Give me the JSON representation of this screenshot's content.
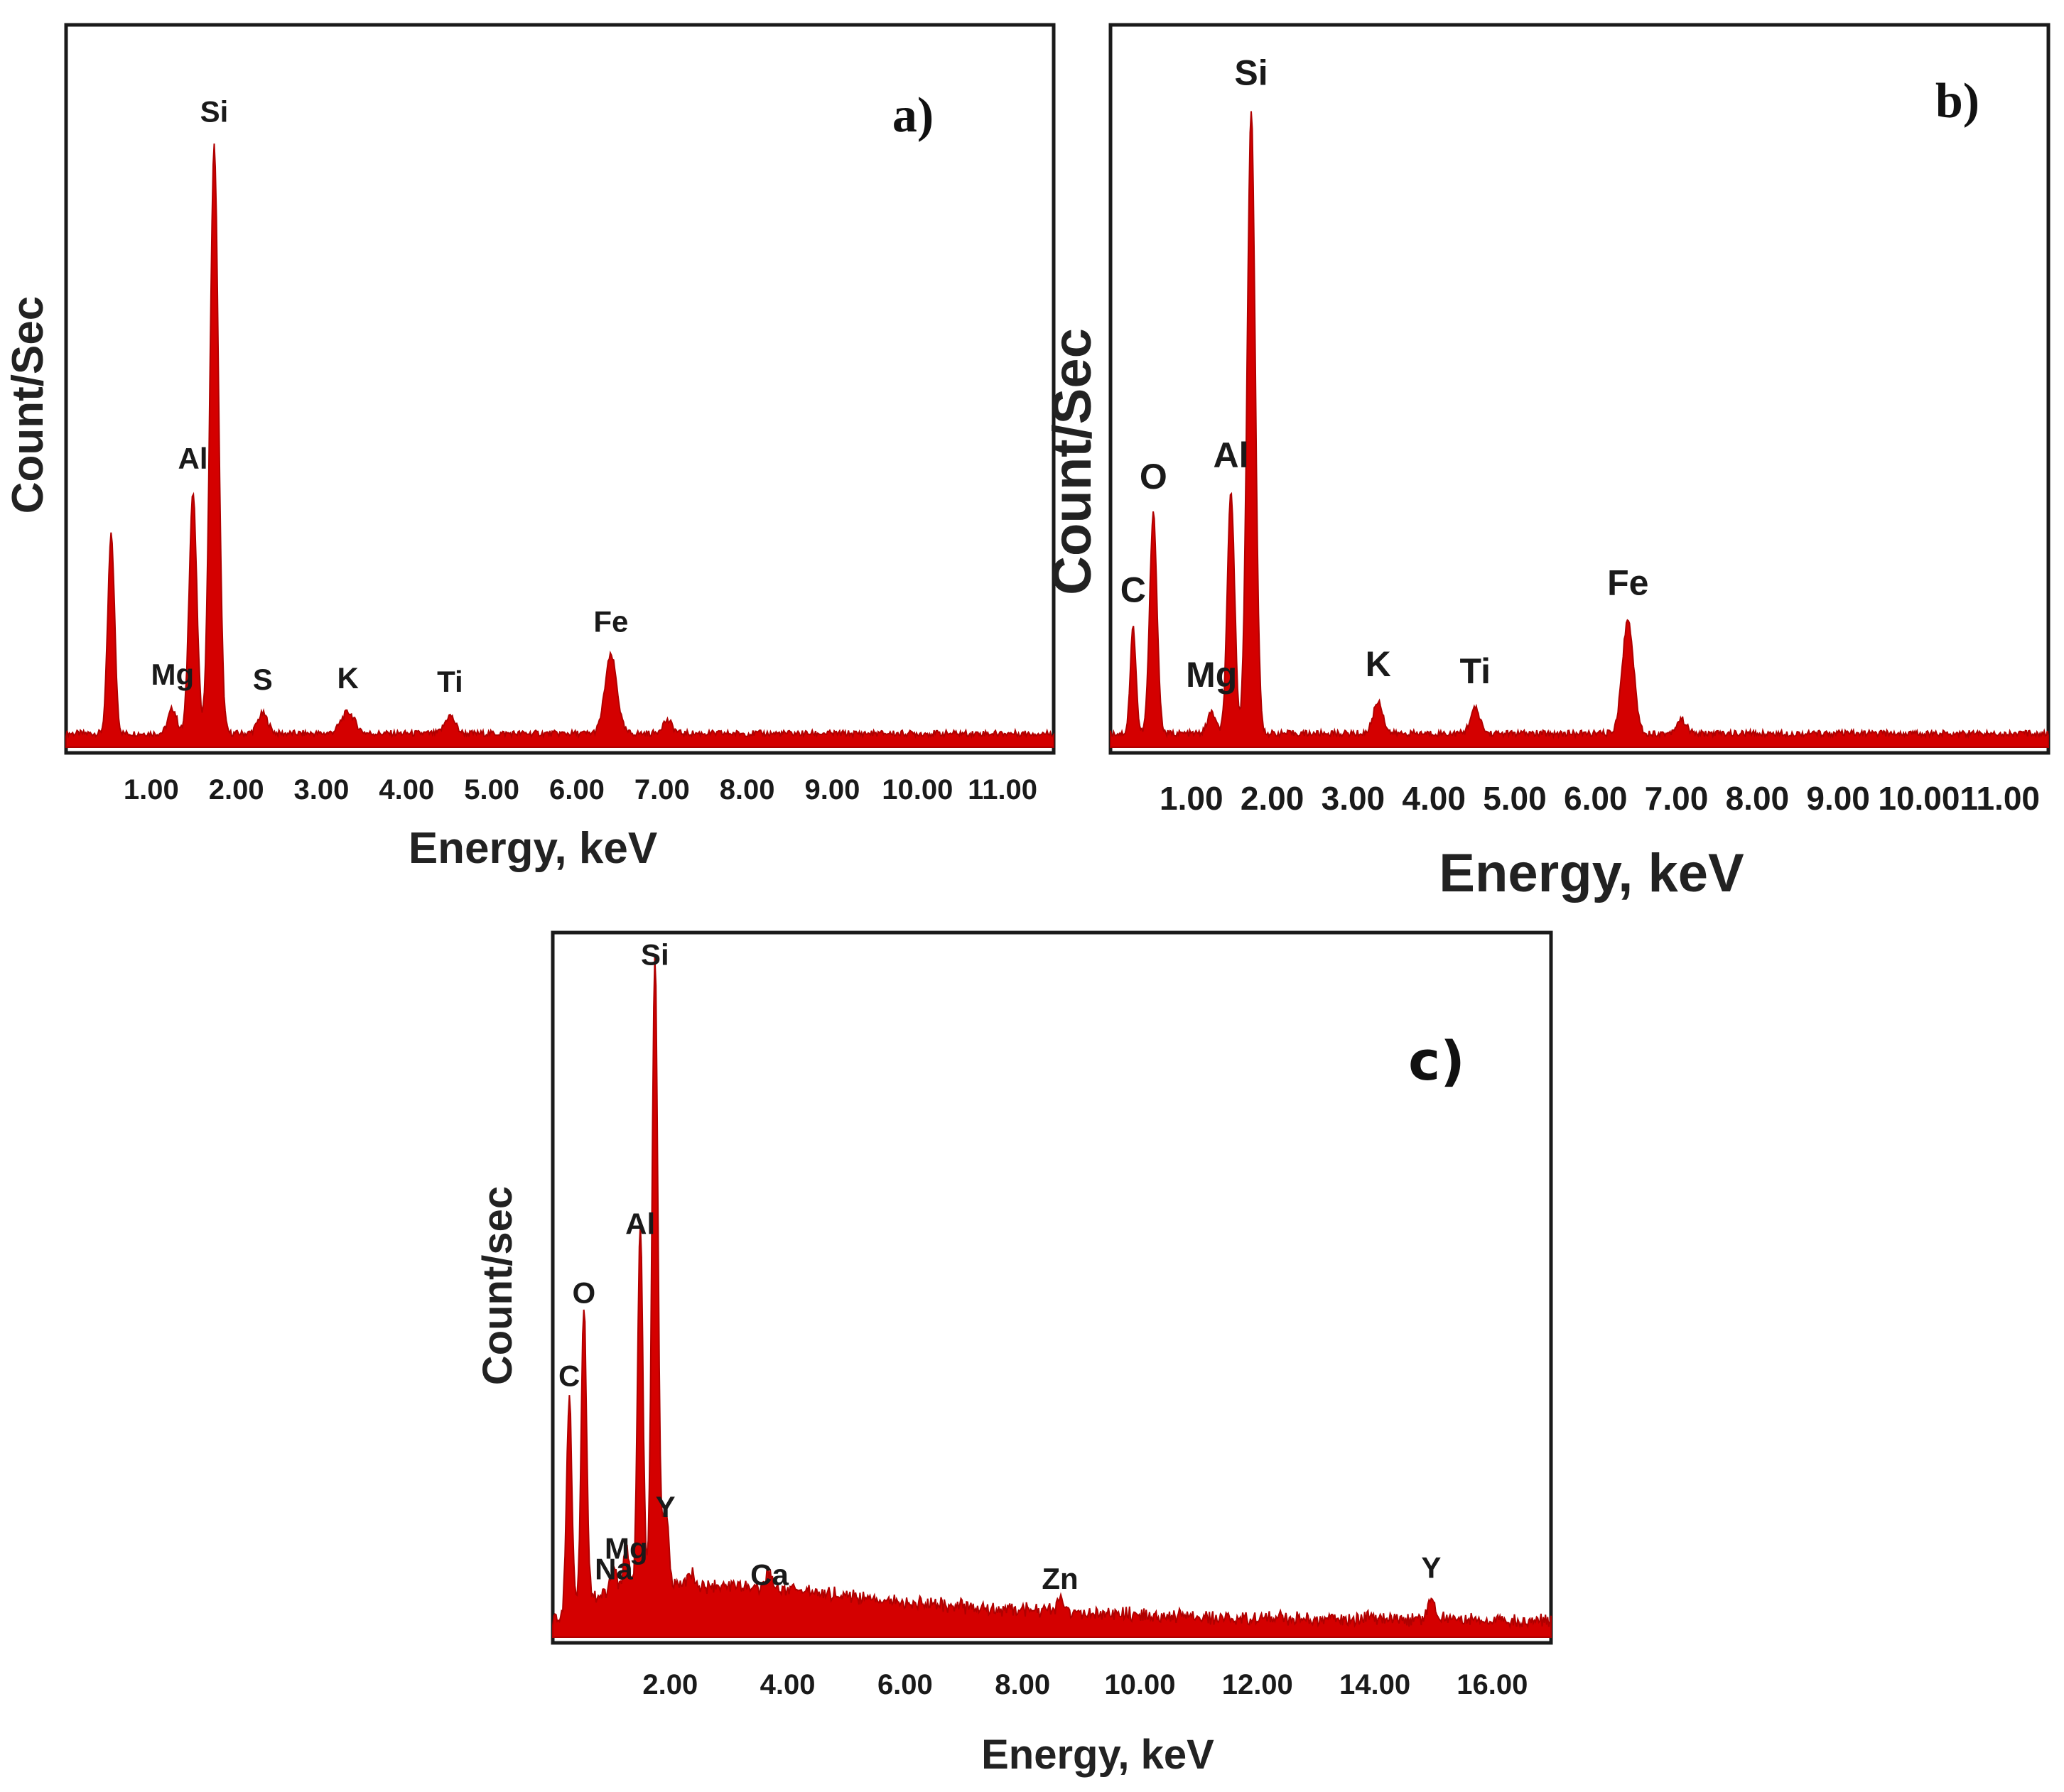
{
  "chart_data": [
    {
      "type": "area",
      "panel_label": "a)",
      "title": "",
      "xlabel": "Energy, keV",
      "ylabel": "Count/Sec",
      "xlim": [
        0,
        11.6
      ],
      "ylim": [
        0,
        100
      ],
      "x_ticks": [
        "1.00",
        "2.00",
        "3.00",
        "4.00",
        "5.00",
        "6.00",
        "7.00",
        "8.00",
        "9.00",
        "10.00",
        "11.00"
      ],
      "x_tick_values": [
        1,
        2,
        3,
        4,
        5,
        6,
        7,
        8,
        9,
        10,
        11
      ],
      "series_color": "#d40000",
      "baseline": 1.5,
      "peaks": [
        {
          "x": 0.53,
          "height": 28,
          "width": 0.04,
          "label": ""
        },
        {
          "x": 1.25,
          "height": 3.5,
          "width": 0.05,
          "label": "Mg"
        },
        {
          "x": 1.49,
          "height": 34,
          "width": 0.045,
          "label": "Al"
        },
        {
          "x": 1.74,
          "height": 83,
          "width": 0.05,
          "label": "Si"
        },
        {
          "x": 2.31,
          "height": 2.8,
          "width": 0.06,
          "label": "S"
        },
        {
          "x": 3.31,
          "height": 3,
          "width": 0.08,
          "label": "K"
        },
        {
          "x": 4.51,
          "height": 2.5,
          "width": 0.06,
          "label": "Ti"
        },
        {
          "x": 6.4,
          "height": 11,
          "width": 0.07,
          "label": "Fe"
        },
        {
          "x": 7.06,
          "height": 1.8,
          "width": 0.06,
          "label": ""
        }
      ]
    },
    {
      "type": "area",
      "panel_label": "b)",
      "title": "",
      "xlabel": "Energy, keV",
      "ylabel": "Count/Sec",
      "xlim": [
        0,
        11.6
      ],
      "ylim": [
        0,
        100
      ],
      "x_ticks": [
        "1.00",
        "2.00",
        "3.00",
        "4.00",
        "5.00",
        "6.00",
        "7.00",
        "8.00",
        "9.00",
        "10.00",
        "11.00"
      ],
      "x_tick_values": [
        1,
        2,
        3,
        4,
        5,
        6,
        7,
        8,
        9,
        10,
        11
      ],
      "series_color": "#d40000",
      "baseline": 1.5,
      "peaks": [
        {
          "x": 0.28,
          "height": 15,
          "width": 0.035,
          "label": "C"
        },
        {
          "x": 0.53,
          "height": 31,
          "width": 0.045,
          "label": "O"
        },
        {
          "x": 1.25,
          "height": 3,
          "width": 0.05,
          "label": "Mg"
        },
        {
          "x": 1.49,
          "height": 34,
          "width": 0.045,
          "label": "Al"
        },
        {
          "x": 1.74,
          "height": 88,
          "width": 0.05,
          "label": "Si"
        },
        {
          "x": 3.31,
          "height": 4.5,
          "width": 0.06,
          "label": "K"
        },
        {
          "x": 4.51,
          "height": 3.5,
          "width": 0.06,
          "label": "Ti"
        },
        {
          "x": 6.4,
          "height": 16,
          "width": 0.07,
          "label": "Fe"
        },
        {
          "x": 7.06,
          "height": 2,
          "width": 0.06,
          "label": ""
        }
      ]
    },
    {
      "type": "area",
      "panel_label": "c)",
      "title": "",
      "xlabel": "Energy, keV",
      "ylabel": "Count/sec",
      "xlim": [
        0,
        17
      ],
      "ylim": [
        0,
        100
      ],
      "x_ticks": [
        "2.00",
        "4.00",
        "6.00",
        "8.00",
        "10.00",
        "12.00",
        "14.00",
        "16.00"
      ],
      "x_tick_values": [
        2,
        4,
        6,
        8,
        10,
        12,
        14,
        16
      ],
      "series_color": "#d40000",
      "baseline": 1.5,
      "background_hump": [
        {
          "x": 0.0,
          "y": 0
        },
        {
          "x": 0.6,
          "y": 4
        },
        {
          "x": 1.2,
          "y": 5
        },
        {
          "x": 2.5,
          "y": 5.5
        },
        {
          "x": 4.0,
          "y": 5
        },
        {
          "x": 5.5,
          "y": 3.5
        },
        {
          "x": 7.0,
          "y": 2.5
        },
        {
          "x": 9.0,
          "y": 1.5
        },
        {
          "x": 12.0,
          "y": 0.8
        },
        {
          "x": 17.0,
          "y": 0.5
        }
      ],
      "peaks": [
        {
          "x": 0.28,
          "height": 31,
          "width": 0.045,
          "label": "C"
        },
        {
          "x": 0.53,
          "height": 43,
          "width": 0.045,
          "label": "O"
        },
        {
          "x": 1.04,
          "height": 3,
          "width": 0.05,
          "label": "Na"
        },
        {
          "x": 1.25,
          "height": 6,
          "width": 0.05,
          "label": "Mg"
        },
        {
          "x": 1.49,
          "height": 53,
          "width": 0.045,
          "label": "Al"
        },
        {
          "x": 1.74,
          "height": 92,
          "width": 0.05,
          "label": "Si"
        },
        {
          "x": 1.92,
          "height": 12,
          "width": 0.05,
          "label": "Y"
        },
        {
          "x": 2.35,
          "height": 2,
          "width": 0.06,
          "label": ""
        },
        {
          "x": 3.69,
          "height": 2.2,
          "width": 0.06,
          "label": "Ca"
        },
        {
          "x": 8.64,
          "height": 1.6,
          "width": 0.07,
          "label": "Zn"
        },
        {
          "x": 14.96,
          "height": 3.2,
          "width": 0.05,
          "label": "Y"
        }
      ]
    }
  ]
}
